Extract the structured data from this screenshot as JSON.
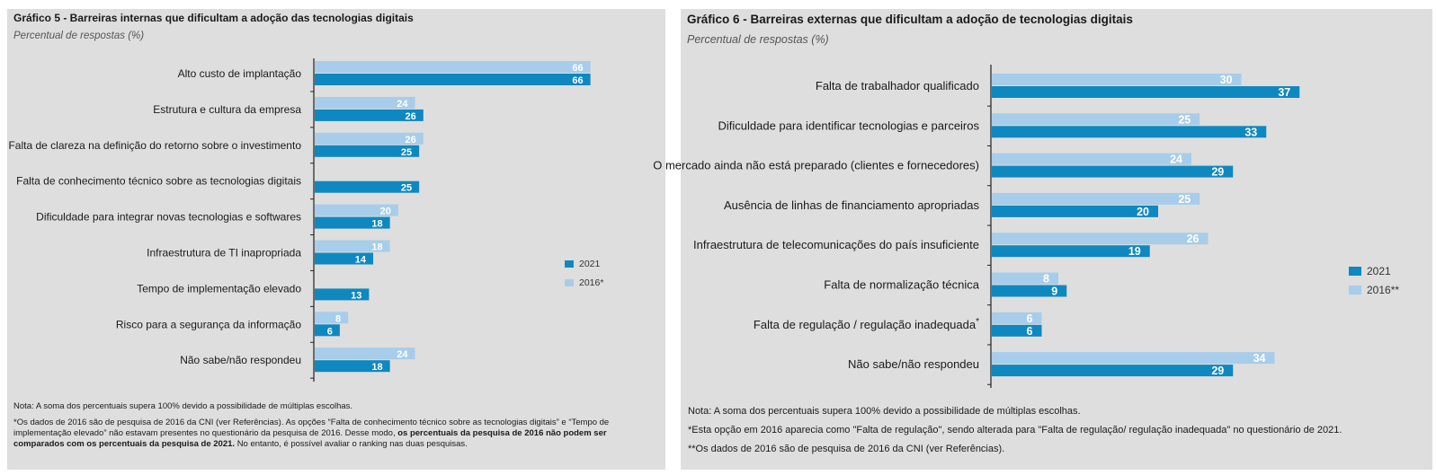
{
  "colors": {
    "y2021": "#0f88bf",
    "y2016": "#a7cdea",
    "label_text": "#ffffff",
    "axis": "#222222"
  },
  "chart_data": [
    {
      "type": "bar",
      "orientation": "horizontal",
      "title": "Gráfico 5 - Barreiras internas que dificultam a adoção das tecnologias digitais",
      "subtitle": "Percentual de respostas (%)",
      "categories": [
        "Alto custo de implantação",
        "Estrutura e cultura da empresa",
        "Falta de clareza na definição do retorno sobre o investimento",
        "Falta de conhecimento técnico sobre as tecnologias digitais",
        "Dificuldade para integrar novas tecnologias e softwares",
        "Infraestrutura de TI inapropriada",
        "Tempo de implementação elevado",
        "Risco para a segurança da informação",
        "Não sabe/não respondeu"
      ],
      "series": [
        {
          "name": "2016*",
          "values": [
            66,
            24,
            26,
            null,
            20,
            18,
            null,
            8,
            24
          ]
        },
        {
          "name": "2021",
          "values": [
            66,
            26,
            25,
            25,
            18,
            14,
            13,
            6,
            18
          ]
        }
      ],
      "legend": [
        "2021",
        "2016*"
      ],
      "xlim": [
        0,
        70
      ],
      "notes": [
        "Nota: A soma dos percentuais supera 100% devido a possibilidade de múltiplas escolhas.",
        "*Os dados de 2016 são de pesquisa de 2016 da CNI (ver Referências). As opções “Falta de conhecimento técnico sobre as tecnologias digitais” e “Tempo de implementação elevado” não estavam presentes no questionário da pesquisa de 2016. Desse modo,",
        "os percentuais da pesquisa de 2016 não podem ser comparados com os percentuais da pesquisa de 2021.",
        "No entanto, é possível avaliar o ranking nas duas pesquisas."
      ]
    },
    {
      "type": "bar",
      "orientation": "horizontal",
      "title": "Gráfico 6 - Barreiras externas que dificultam a adoção de tecnologias digitais",
      "subtitle": "Percentual de respostas (%)",
      "categories": [
        "Falta de trabalhador qualificado",
        "Dificuldade para identificar tecnologias e parceiros",
        "O mercado ainda não está preparado (clientes e fornecedores)",
        "Ausência de linhas de financiamento apropriadas",
        "Infraestrutura de telecomunicações do país insuficiente",
        "Falta de normalização técnica",
        "Falta de regulação / regulação inadequada",
        "Não sabe/não respondeu"
      ],
      "category_marks": [
        "",
        "",
        "",
        "",
        "",
        "",
        "*",
        ""
      ],
      "series": [
        {
          "name": "2016**",
          "values": [
            30,
            25,
            24,
            25,
            26,
            8,
            6,
            34
          ]
        },
        {
          "name": "2021",
          "values": [
            37,
            33,
            29,
            20,
            19,
            9,
            6,
            29
          ]
        }
      ],
      "legend": [
        "2021",
        "2016**"
      ],
      "xlim": [
        0,
        40
      ],
      "notes": [
        "Nota: A soma dos percentuais supera 100% devido a possibilidade de múltiplas escolhas.",
        "*Esta opção em 2016 aparecia como \"Falta de regulação\", sendo alterada para \"Falta de regulação/ regulação inadequada\" no questionário de 2021.",
        "**Os dados de 2016 são de pesquisa de 2016 da CNI (ver Referências)."
      ]
    }
  ]
}
